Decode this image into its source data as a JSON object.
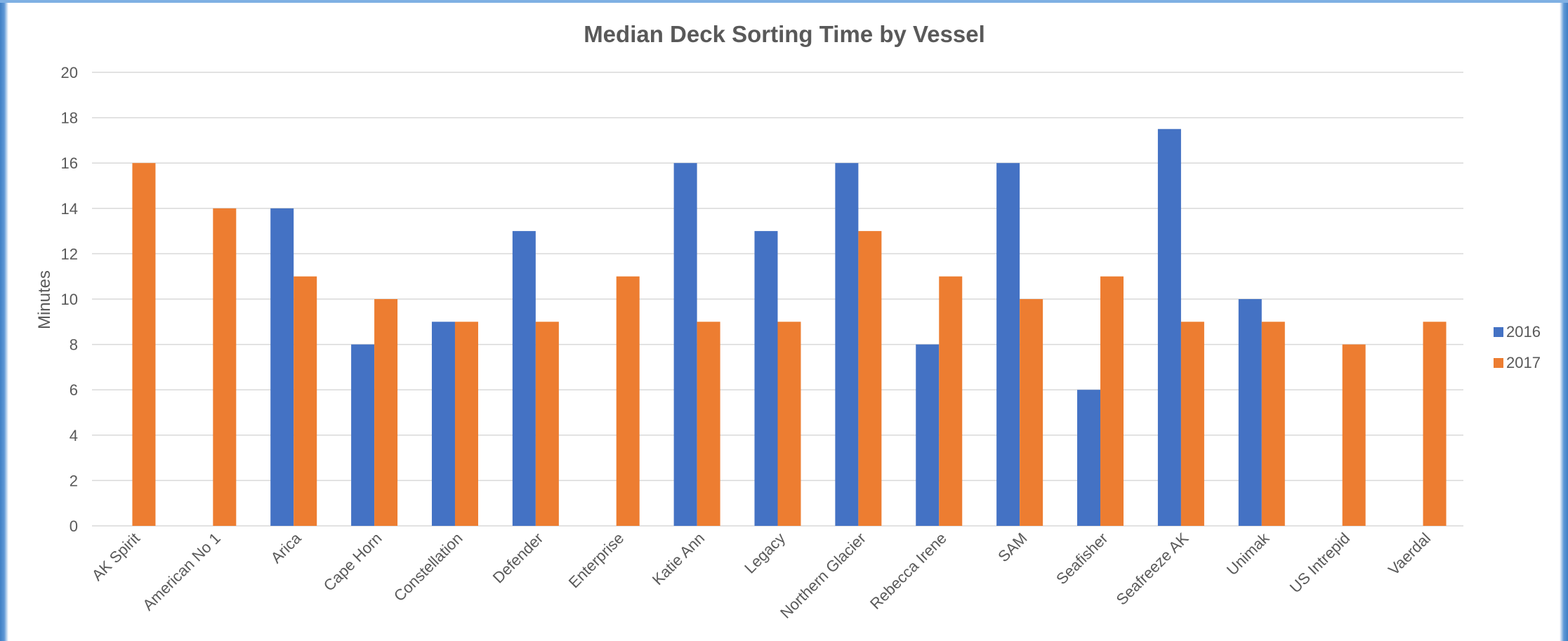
{
  "chart_data": {
    "type": "bar",
    "title": "Median Deck Sorting Time by Vessel",
    "xlabel": "",
    "ylabel": "Minutes",
    "ylim": [
      0,
      20
    ],
    "yticks": [
      0,
      2,
      4,
      6,
      8,
      10,
      12,
      14,
      16,
      18,
      20
    ],
    "grid": true,
    "legend_position": "right",
    "categories": [
      "AK Spirit",
      "American No 1",
      "Arica",
      "Cape Horn",
      "Constellation",
      "Defender",
      "Enterprise",
      "Katie Ann",
      "Legacy",
      "Northern Glacier",
      "Rebecca Irene",
      "SAM",
      "Seafisher",
      "Seafreeze AK",
      "Unimak",
      "US Intrepid",
      "Vaerdal"
    ],
    "series": [
      {
        "name": "2016",
        "color": "#4472c4",
        "values": [
          null,
          null,
          14,
          8,
          9,
          13,
          null,
          16,
          13,
          16,
          8,
          16,
          6,
          17.5,
          10,
          null,
          null
        ]
      },
      {
        "name": "2017",
        "color": "#ed7d31",
        "values": [
          16,
          14,
          11,
          10,
          9,
          9,
          11,
          9,
          9,
          13,
          11,
          10,
          11,
          9,
          9,
          8,
          9
        ]
      }
    ]
  }
}
